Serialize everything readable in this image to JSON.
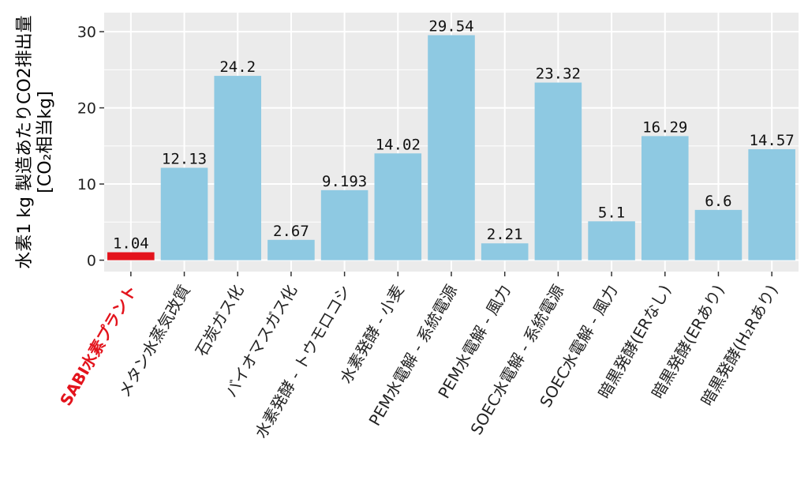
{
  "colors": {
    "panel_bg": "#ebebeb",
    "grid": "#ffffff",
    "bar": "#8ec9e2",
    "highlight_bar": "#e3131c",
    "highlight_text": "#e3131c"
  },
  "chart_data": {
    "type": "bar",
    "title": "",
    "xlabel": "",
    "ylabel_lines": [
      "水素1 kg 製造あたりCO2排出量",
      "[CO₂相当kg]"
    ],
    "ylim": [
      -1.5,
      32.5
    ],
    "yticks": [
      0,
      10,
      20,
      30
    ],
    "ytick_labels": [
      "0",
      "10",
      "20",
      "30"
    ],
    "grid": true,
    "legend": "none",
    "categories": [
      "SABI水素プラント",
      "メタン水蒸気改質",
      "石炭ガス化",
      "バイオマスガス化",
      "水素発酵 - トウモロコシ",
      "水素発酵 - 小麦",
      "PEM水電解 - 系統電源",
      "PEM水電解 - 風力",
      "SOEC水電解 - 系統電源",
      "SOEC水電解 - 風力",
      "暗黒発酵(ERなし)",
      "暗黒発酵(ERあり)",
      "暗黒発酵(H₂Rあり)"
    ],
    "values": [
      1.04,
      12.13,
      24.2,
      2.67,
      9.193,
      14.02,
      29.54,
      2.21,
      23.32,
      5.1,
      16.29,
      6.6,
      14.57
    ],
    "value_labels": [
      "1.04",
      "12.13",
      "24.2",
      "2.67",
      "9.193",
      "14.02",
      "29.54",
      "2.21",
      "23.32",
      "5.1",
      "16.29",
      "6.6",
      "14.57"
    ],
    "highlight_index": 0
  }
}
